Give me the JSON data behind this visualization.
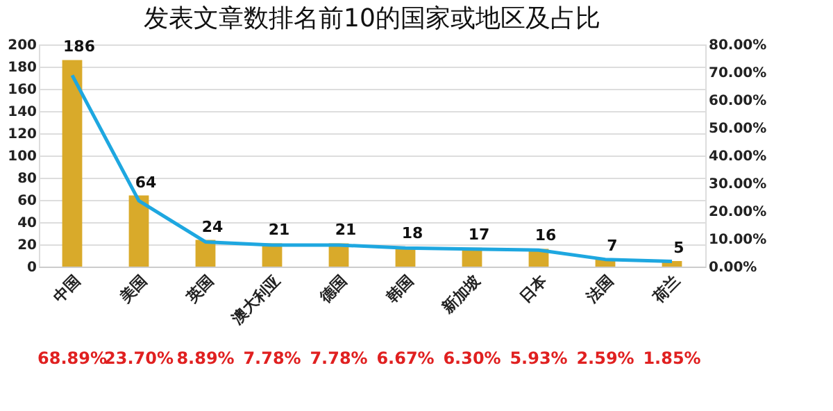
{
  "chart_data": {
    "type": "bar",
    "title": "发表文章数排名前10的国家或地区及占比",
    "categories": [
      "中国",
      "美国",
      "英国",
      "澳大利亚",
      "德国",
      "韩国",
      "新加坡",
      "日本",
      "法国",
      "荷兰"
    ],
    "series": [
      {
        "color": "#d9aa2a",
        "values": [
          186,
          64,
          24,
          21,
          21,
          18,
          17,
          16,
          7,
          5
        ],
        "value_labels": [
          "186",
          "64",
          "24",
          "21",
          "21",
          "18",
          "17",
          "16",
          "7",
          "5"
        ]
      },
      {
        "type": "line",
        "axis": "y2",
        "color": "#1ea7e0",
        "values": [
          68.89,
          23.7,
          8.89,
          7.78,
          7.78,
          6.67,
          6.3,
          5.93,
          2.59,
          1.85
        ],
        "value_labels": [
          "68.89%",
          "23.70%",
          "8.89%",
          "7.78%",
          "7.78%",
          "6.67%",
          "6.30%",
          "5.93%",
          "2.59%",
          "1.85%"
        ]
      }
    ],
    "ylim": [
      0,
      200
    ],
    "yticks": [
      0,
      20,
      40,
      60,
      80,
      100,
      120,
      140,
      160,
      180,
      200
    ],
    "y2lim": [
      0,
      80
    ],
    "y2ticks": [
      {
        "value": 0,
        "label": "0.00%"
      },
      {
        "value": 10,
        "label": "10.00%"
      },
      {
        "value": 20,
        "label": "20.00%"
      },
      {
        "value": 30,
        "label": "30.00%"
      },
      {
        "value": 40,
        "label": "40.00%"
      },
      {
        "value": 50,
        "label": "50.00%"
      },
      {
        "value": 60,
        "label": "60.00%"
      },
      {
        "value": 70,
        "label": "70.00%"
      },
      {
        "value": 80,
        "label": "80.00%"
      }
    ],
    "grid": "y",
    "marker": "none"
  }
}
